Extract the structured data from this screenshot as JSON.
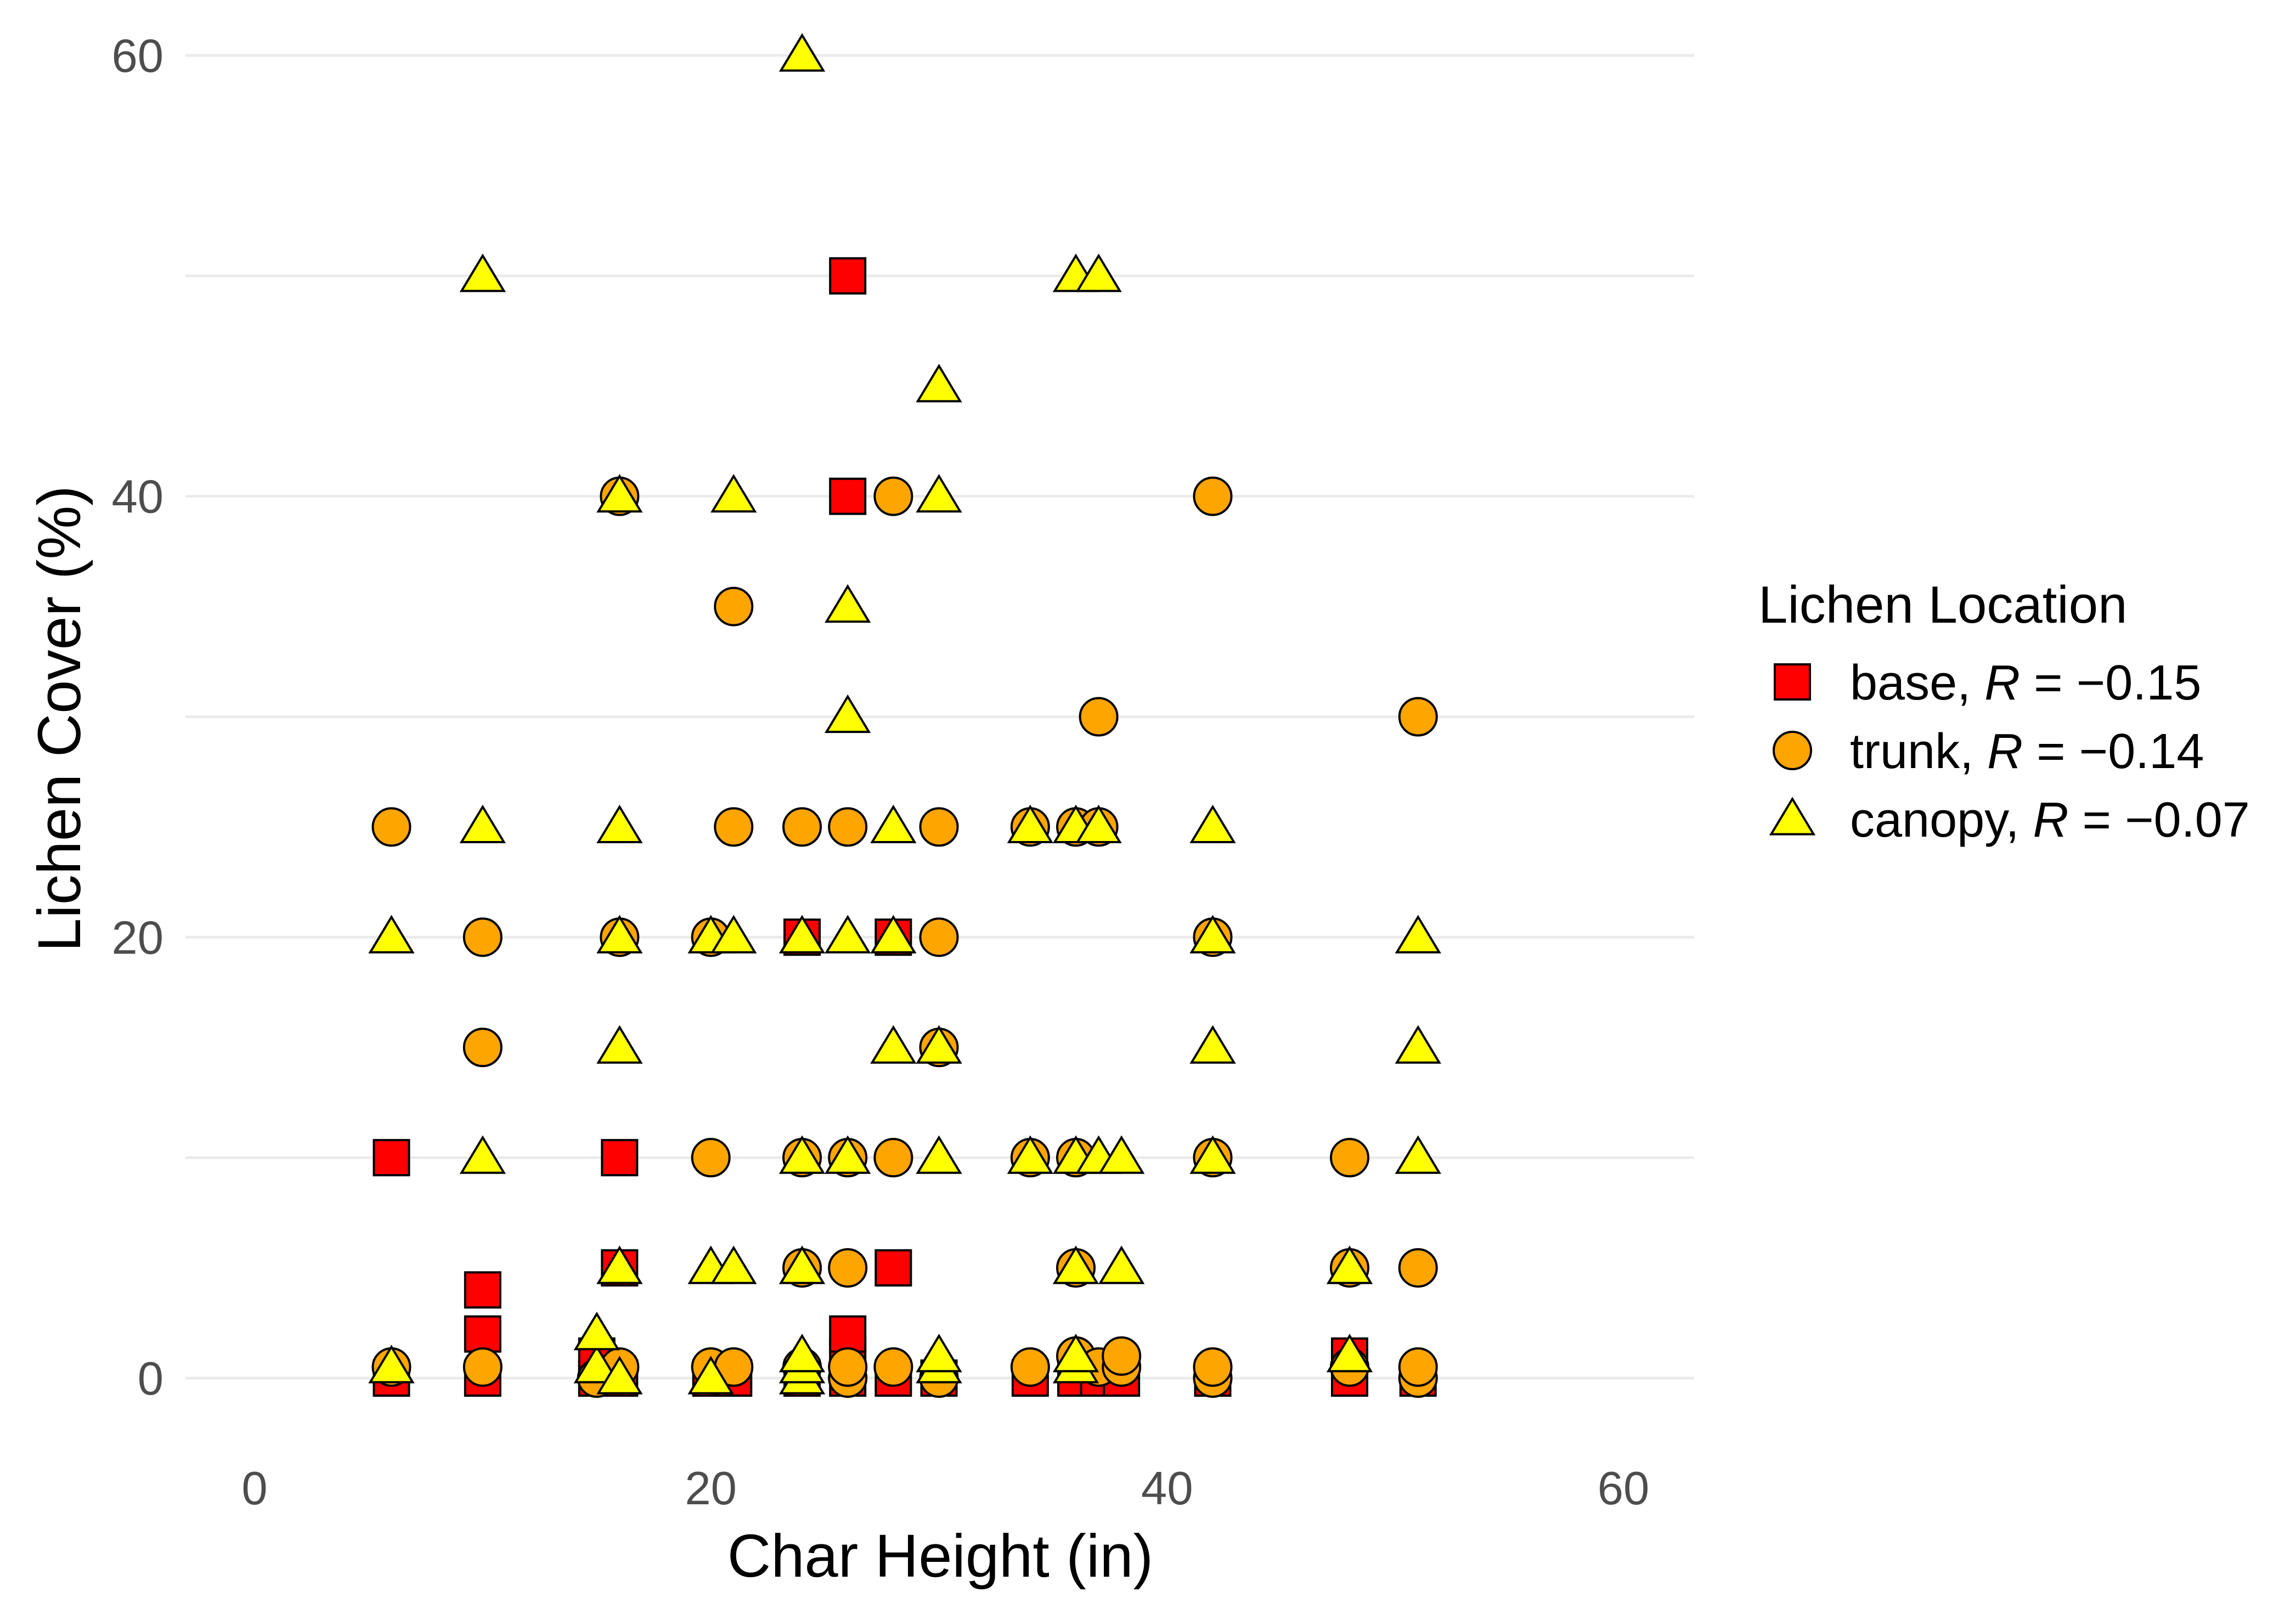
{
  "chart_data": {
    "type": "scatter",
    "xlabel": "Char Height (in)",
    "ylabel": "Lichen Cover (%)",
    "xlim": [
      -3,
      63
    ],
    "ylim": [
      -3,
      60.5
    ],
    "x_ticks": [
      0,
      20,
      40,
      60
    ],
    "y_ticks": [
      0,
      20,
      40,
      60
    ],
    "x_tick_labels": [
      "0",
      "20",
      "40",
      "60"
    ],
    "y_tick_labels": [
      "0",
      "20",
      "40",
      "60"
    ],
    "grid": true,
    "legend": {
      "title": "Lichen Location",
      "position": "right"
    },
    "series": [
      {
        "name": "base",
        "label_prefix": "base, ",
        "stat_symbol": "R",
        "stat_text": " = −0.15",
        "marker": "square",
        "color": "#ff0000",
        "points": [
          [
            6,
            0
          ],
          [
            6,
            10
          ],
          [
            10,
            0
          ],
          [
            10,
            2
          ],
          [
            10,
            4
          ],
          [
            15,
            0
          ],
          [
            15,
            1
          ],
          [
            16,
            0
          ],
          [
            16,
            5
          ],
          [
            16,
            10
          ],
          [
            20,
            0
          ],
          [
            21,
            0
          ],
          [
            24,
            0
          ],
          [
            24,
            20
          ],
          [
            26,
            0
          ],
          [
            26,
            1
          ],
          [
            26,
            2
          ],
          [
            26,
            40
          ],
          [
            26,
            50
          ],
          [
            28,
            0
          ],
          [
            28,
            5
          ],
          [
            28,
            20
          ],
          [
            30,
            0
          ],
          [
            34,
            0
          ],
          [
            36,
            0
          ],
          [
            37,
            0
          ],
          [
            38,
            0
          ],
          [
            42,
            0
          ],
          [
            48,
            0
          ],
          [
            48,
            1
          ],
          [
            51,
            0
          ]
        ]
      },
      {
        "name": "trunk",
        "label_prefix": "trunk, ",
        "stat_symbol": "R",
        "stat_text": " = −0.14",
        "marker": "circle",
        "color": "#ffa500",
        "points": [
          [
            6,
            0.5
          ],
          [
            6,
            25
          ],
          [
            10,
            0.5
          ],
          [
            10,
            15
          ],
          [
            10,
            20
          ],
          [
            15,
            0
          ],
          [
            16,
            0.5
          ],
          [
            16,
            20
          ],
          [
            16,
            40
          ],
          [
            20,
            0.5
          ],
          [
            20,
            10
          ],
          [
            20,
            20
          ],
          [
            21,
            0.5
          ],
          [
            21,
            25
          ],
          [
            21,
            35
          ],
          [
            24,
            0.5
          ],
          [
            24,
            5
          ],
          [
            24,
            10
          ],
          [
            24,
            25
          ],
          [
            26,
            0
          ],
          [
            26,
            0.5
          ],
          [
            26,
            5
          ],
          [
            26,
            10
          ],
          [
            26,
            25
          ],
          [
            28,
            0.5
          ],
          [
            28,
            10
          ],
          [
            28,
            40
          ],
          [
            30,
            0
          ],
          [
            30,
            15
          ],
          [
            30,
            20
          ],
          [
            30,
            25
          ],
          [
            34,
            0.5
          ],
          [
            34,
            10
          ],
          [
            34,
            25
          ],
          [
            36,
            1
          ],
          [
            36,
            5
          ],
          [
            36,
            10
          ],
          [
            36,
            25
          ],
          [
            37,
            0.5
          ],
          [
            37,
            25
          ],
          [
            37,
            30
          ],
          [
            38,
            0.5
          ],
          [
            38,
            1
          ],
          [
            42,
            0
          ],
          [
            42,
            0.5
          ],
          [
            42,
            10
          ],
          [
            42,
            20
          ],
          [
            42,
            40
          ],
          [
            48,
            0.5
          ],
          [
            48,
            5
          ],
          [
            48,
            10
          ],
          [
            51,
            0
          ],
          [
            51,
            0.5
          ],
          [
            51,
            5
          ],
          [
            51,
            30
          ]
        ]
      },
      {
        "name": "canopy",
        "label_prefix": "canopy, ",
        "stat_symbol": "R",
        "stat_text": " = −0.07",
        "marker": "triangle",
        "color": "#ffff00",
        "points": [
          [
            6,
            0.5
          ],
          [
            6,
            20
          ],
          [
            10,
            10
          ],
          [
            10,
            25
          ],
          [
            10,
            50
          ],
          [
            15,
            0.5
          ],
          [
            15,
            2
          ],
          [
            16,
            0
          ],
          [
            16,
            5
          ],
          [
            16,
            15
          ],
          [
            16,
            20
          ],
          [
            16,
            25
          ],
          [
            16,
            40
          ],
          [
            20,
            0
          ],
          [
            20,
            5
          ],
          [
            20,
            20
          ],
          [
            21,
            5
          ],
          [
            21,
            20
          ],
          [
            21,
            40
          ],
          [
            24,
            0
          ],
          [
            24,
            0.5
          ],
          [
            24,
            1
          ],
          [
            24,
            5
          ],
          [
            24,
            10
          ],
          [
            24,
            20
          ],
          [
            24,
            60
          ],
          [
            26,
            10
          ],
          [
            26,
            20
          ],
          [
            26,
            30
          ],
          [
            26,
            35
          ],
          [
            28,
            15
          ],
          [
            28,
            20
          ],
          [
            28,
            25
          ],
          [
            30,
            0.5
          ],
          [
            30,
            1
          ],
          [
            30,
            10
          ],
          [
            30,
            15
          ],
          [
            30,
            40
          ],
          [
            30,
            45
          ],
          [
            34,
            10
          ],
          [
            34,
            25
          ],
          [
            36,
            0.5
          ],
          [
            36,
            1
          ],
          [
            36,
            5
          ],
          [
            36,
            10
          ],
          [
            36,
            25
          ],
          [
            36,
            50
          ],
          [
            37,
            10
          ],
          [
            37,
            25
          ],
          [
            37,
            50
          ],
          [
            38,
            5
          ],
          [
            38,
            10
          ],
          [
            42,
            10
          ],
          [
            42,
            15
          ],
          [
            42,
            20
          ],
          [
            42,
            25
          ],
          [
            48,
            1
          ],
          [
            48,
            5
          ],
          [
            51,
            10
          ],
          [
            51,
            15
          ],
          [
            51,
            20
          ]
        ]
      }
    ]
  }
}
